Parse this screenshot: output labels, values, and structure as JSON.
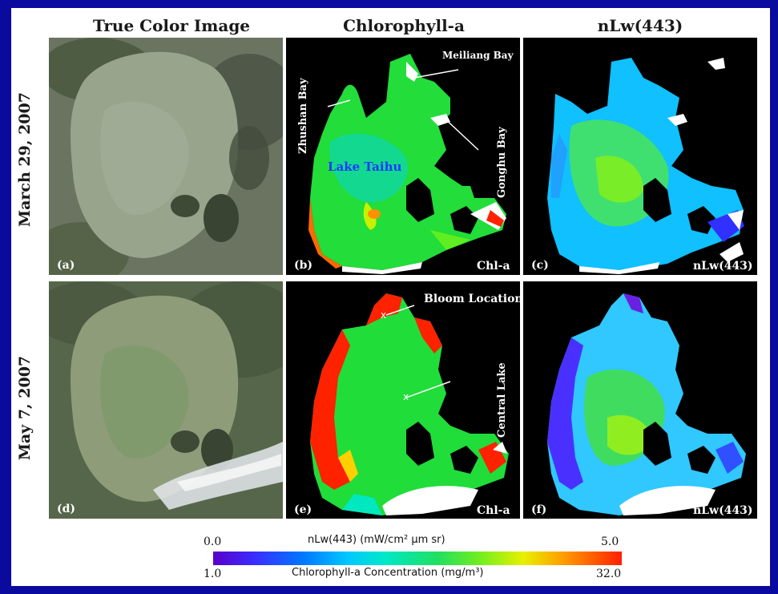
{
  "columns": {
    "true_color": "True Color Image",
    "chlorophyll": "Chlorophyll-a",
    "nlw": "nLw(443)"
  },
  "rows": {
    "row1": "March 29, 2007",
    "row2": "May 7, 2007"
  },
  "panels": {
    "a": "(a)",
    "b": "(b)",
    "c": "(c)",
    "d": "(d)",
    "e": "(e)",
    "f": "(f)"
  },
  "panel_tags": {
    "chl_b": "Chl-a",
    "nlw_c": "nLw(443)",
    "chl_e": "Chl-a",
    "nlw_f": "nLw(443)"
  },
  "annotations": {
    "meiliang": "Meiliang Bay",
    "zhushan": "Zhushan Bay",
    "gonghu": "Gonghu Bay",
    "lake": "Lake Taihu",
    "bloom": "Bloom Location",
    "central": "Central Lake"
  },
  "colorbar": {
    "top_title": "nLw(443) (mW/cm² µm sr)",
    "top_min": "0.0",
    "top_max": "5.0",
    "bottom_title": "Chlorophyll-a Concentration (mg/m³)",
    "bottom_min": "1.0",
    "bottom_max": "32.0"
  },
  "colors": {
    "frame": "#0a0a9e",
    "lake_label": "#1a3aff"
  }
}
